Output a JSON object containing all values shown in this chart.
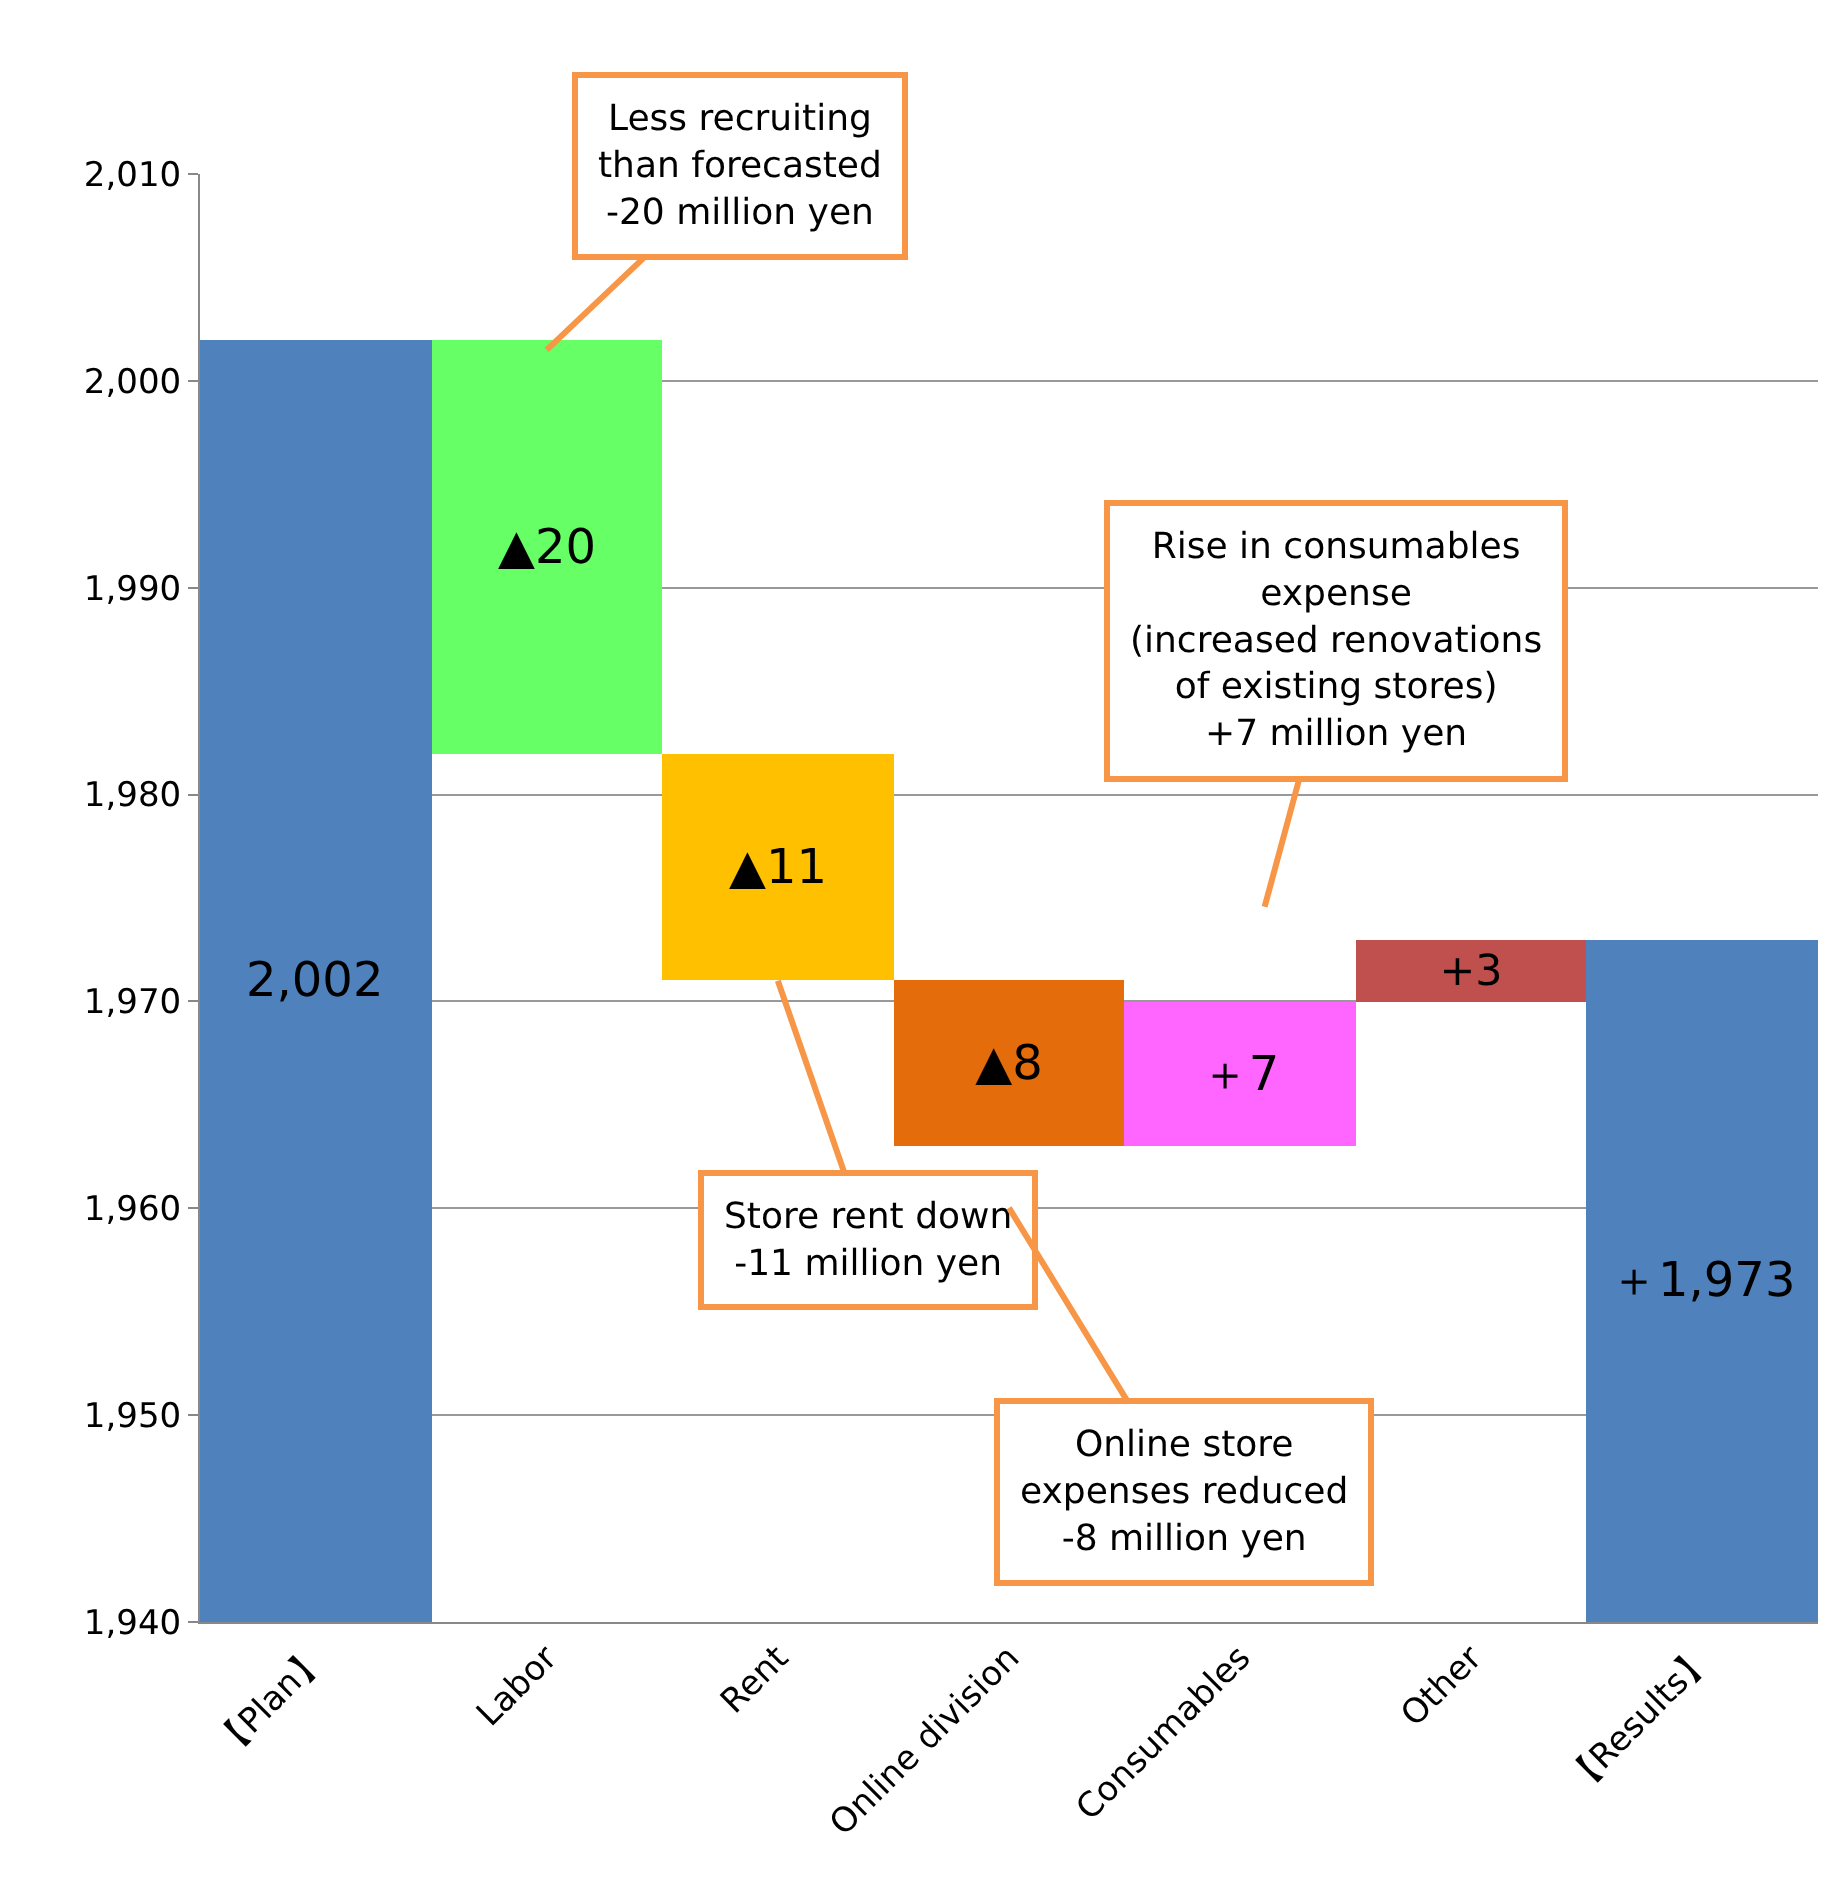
{
  "chart_data": {
    "type": "bar",
    "categories": [
      "【Plan】",
      "Labor",
      "Rent",
      "Online division",
      "Consumables",
      "Other",
      "【Results】"
    ],
    "values": [
      2002,
      -20,
      -11,
      -8,
      7,
      3,
      1973
    ],
    "base": [
      null,
      2002,
      1982,
      1971,
      1963,
      1970,
      null
    ],
    "colors": [
      "#4f81bd",
      "#66ff66",
      "#ffc000",
      "#e46c0a",
      "#ff66ff",
      "#c0504d",
      "#4f81bd"
    ],
    "value_labels": [
      "2,002",
      "▲20",
      "▲11",
      "▲8",
      "＋7",
      "+3",
      "＋1,973"
    ],
    "ylim": [
      1940,
      2010
    ],
    "yticks": [
      {
        "value": 1940,
        "label": "1,940"
      },
      {
        "value": 1950,
        "label": "1,950"
      },
      {
        "value": 1960,
        "label": "1,960"
      },
      {
        "value": 1970,
        "label": "1,970"
      },
      {
        "value": 1980,
        "label": "1,980"
      },
      {
        "value": 1990,
        "label": "1,990"
      },
      {
        "value": 2000,
        "label": "2,000"
      },
      {
        "value": 2010,
        "label": "2,010"
      }
    ],
    "grid": "y",
    "annotations": [
      {
        "text": "Less recruiting\nthan forecasted\n-20 million yen",
        "x": "Labor",
        "y": 2001.5
      },
      {
        "text": "Store rent down\n-11 million yen",
        "x": "Rent",
        "y": 1971
      },
      "Online store\nexpenses reduced\n-8 million yen",
      "Rise in consumables\nexpense\n(increased renovations\nof existing stores)\n+7 million yen"
    ]
  }
}
